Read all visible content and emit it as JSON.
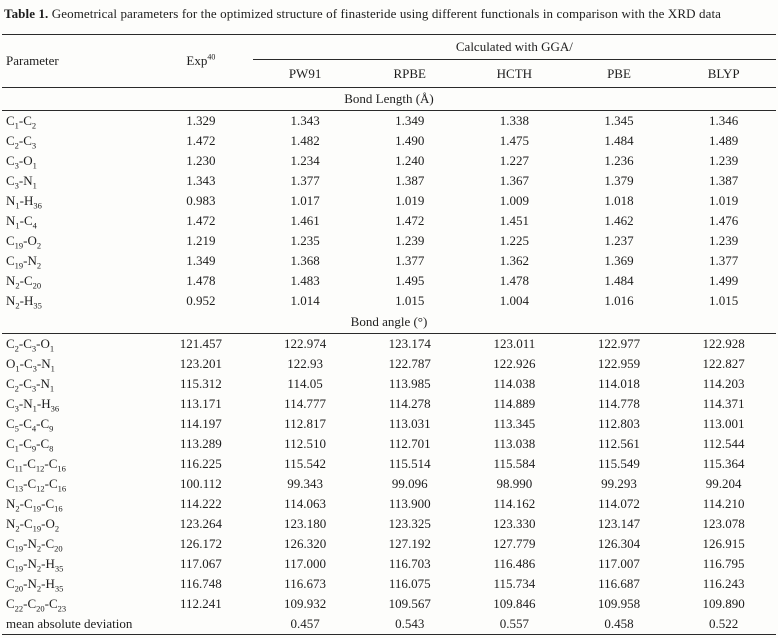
{
  "caption": {
    "label": "Table 1.",
    "text": "Geometrical parameters for the optimized structure of finasteride using different functionals in comparison with the XRD data"
  },
  "header": {
    "parameter": "Parameter",
    "exp": "Exp",
    "exp_ref": "40",
    "gga": "Calculated with GGA/",
    "functionals": [
      "PW91",
      "RPBE",
      "HCTH",
      "PBE",
      "BLYP"
    ]
  },
  "sections": [
    {
      "label": "Bond Length (Å)",
      "rows": [
        {
          "param": "C_1-C_2",
          "values": [
            "1.329",
            "1.343",
            "1.349",
            "1.338",
            "1.345",
            "1.346"
          ]
        },
        {
          "param": "C_2-C_3",
          "values": [
            "1.472",
            "1.482",
            "1.490",
            "1.475",
            "1.484",
            "1.489"
          ]
        },
        {
          "param": "C_3-O_1",
          "values": [
            "1.230",
            "1.234",
            "1.240",
            "1.227",
            "1.236",
            "1.239"
          ]
        },
        {
          "param": "C_3-N_1",
          "values": [
            "1.343",
            "1.377",
            "1.387",
            "1.367",
            "1.379",
            "1.387"
          ]
        },
        {
          "param": "N_1-H_36",
          "values": [
            "0.983",
            "1.017",
            "1.019",
            "1.009",
            "1.018",
            "1.019"
          ]
        },
        {
          "param": "N_1-C_4",
          "values": [
            "1.472",
            "1.461",
            "1.472",
            "1.451",
            "1.462",
            "1.476"
          ]
        },
        {
          "param": "C_19-O_2",
          "values": [
            "1.219",
            "1.235",
            "1.239",
            "1.225",
            "1.237",
            "1.239"
          ]
        },
        {
          "param": "C_19-N_2",
          "values": [
            "1.349",
            "1.368",
            "1.377",
            "1.362",
            "1.369",
            "1.377"
          ]
        },
        {
          "param": "N_2-C_20",
          "values": [
            "1.478",
            "1.483",
            "1.495",
            "1.478",
            "1.484",
            "1.499"
          ]
        },
        {
          "param": "N_2-H_35",
          "values": [
            "0.952",
            "1.014",
            "1.015",
            "1.004",
            "1.016",
            "1.015"
          ]
        }
      ]
    },
    {
      "label": "Bond angle (°)",
      "rows": [
        {
          "param": "C_2-C_3-O_1",
          "values": [
            "121.457",
            "122.974",
            "123.174",
            "123.011",
            "122.977",
            "122.928"
          ]
        },
        {
          "param": "O_1-C_3-N_1",
          "values": [
            "123.201",
            "122.93",
            "122.787",
            "122.926",
            "122.959",
            "122.827"
          ]
        },
        {
          "param": "C_2-C_3-N_1",
          "values": [
            "115.312",
            "114.05",
            "113.985",
            "114.038",
            "114.018",
            "114.203"
          ]
        },
        {
          "param": "C_3-N_1-H_36",
          "values": [
            "113.171",
            "114.777",
            "114.278",
            "114.889",
            "114.778",
            "114.371"
          ]
        },
        {
          "param": "C_5-C_4-C_9",
          "values": [
            "114.197",
            "112.817",
            "113.031",
            "113.345",
            "112.803",
            "113.001"
          ]
        },
        {
          "param": "C_1-C_9-C_8",
          "values": [
            "113.289",
            "112.510",
            "112.701",
            "113.038",
            "112.561",
            "112.544"
          ]
        },
        {
          "param": "C_11-C_12-C_16",
          "values": [
            "116.225",
            "115.542",
            "115.514",
            "115.584",
            "115.549",
            "115.364"
          ]
        },
        {
          "param": "C_13-C_12-C_16",
          "values": [
            "100.112",
            "99.343",
            "99.096",
            "98.990",
            "99.293",
            "99.204"
          ]
        },
        {
          "param": "N_2-C_19-C_16",
          "values": [
            "114.222",
            "114.063",
            "113.900",
            "114.162",
            "114.072",
            "114.210"
          ]
        },
        {
          "param": "N_2-C_19-O_2",
          "values": [
            "123.264",
            "123.180",
            "123.325",
            "123.330",
            "123.147",
            "123.078"
          ]
        },
        {
          "param": "C_19-N_2-C_20",
          "values": [
            "126.172",
            "126.320",
            "127.192",
            "127.779",
            "126.304",
            "126.915"
          ]
        },
        {
          "param": "C_19-N_2-H_35",
          "values": [
            "117.067",
            "117.000",
            "116.703",
            "116.486",
            "117.007",
            "116.795"
          ]
        },
        {
          "param": "C_20-N_2-H_35",
          "values": [
            "116.748",
            "116.673",
            "116.075",
            "115.734",
            "116.687",
            "116.243"
          ]
        },
        {
          "param": "C_22-C_20-C_23",
          "values": [
            "112.241",
            "109.932",
            "109.567",
            "109.846",
            "109.958",
            "109.890"
          ]
        }
      ]
    }
  ],
  "footer": {
    "label": "mean absolute deviation",
    "values": [
      "",
      "0.457",
      "0.543",
      "0.557",
      "0.458",
      "0.522"
    ]
  },
  "colors": {
    "text": "#1d1d1d",
    "rule": "#2a2a2a",
    "background": "#fdfdfb"
  }
}
